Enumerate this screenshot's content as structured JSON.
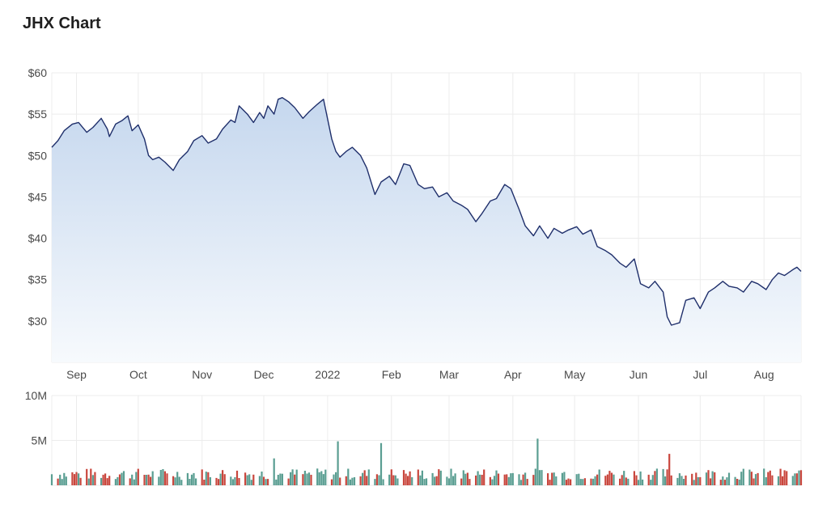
{
  "title": "JHX Chart",
  "chart_data": [
    {
      "type": "area",
      "title": "JHX Chart",
      "ylim": [
        25,
        60
      ],
      "y_ticks": [
        "$60",
        "$55",
        "$50",
        "$45",
        "$40",
        "$35",
        "$30"
      ],
      "y_tick_values": [
        60,
        55,
        50,
        45,
        40,
        35,
        30
      ],
      "x_tick_labels": [
        "Sep",
        "Oct",
        "Nov",
        "Dec",
        "2022",
        "Feb",
        "Mar",
        "Apr",
        "May",
        "Jun",
        "Jul",
        "Aug"
      ],
      "x_tick_dates": [
        "2021-09-01",
        "2021-10-01",
        "2021-11-01",
        "2021-12-01",
        "2022-01-01",
        "2022-02-01",
        "2022-03-01",
        "2022-04-01",
        "2022-05-01",
        "2022-06-01",
        "2022-07-01",
        "2022-08-01"
      ],
      "x_range": [
        "2021-08-20",
        "2022-08-19"
      ],
      "grid": true,
      "colors": {
        "line": "#1f2f6b",
        "fill_top": "#c5d7ee",
        "fill_bottom": "#f7fafd",
        "grid": "#ececec"
      },
      "series": [
        {
          "points": [
            [
              "2021-08-20",
              51.0
            ],
            [
              "2021-08-23",
              51.8
            ],
            [
              "2021-08-26",
              53.0
            ],
            [
              "2021-08-30",
              53.8
            ],
            [
              "2021-09-02",
              54.0
            ],
            [
              "2021-09-06",
              52.8
            ],
            [
              "2021-09-09",
              53.4
            ],
            [
              "2021-09-13",
              54.5
            ],
            [
              "2021-09-16",
              53.2
            ],
            [
              "2021-09-17",
              52.3
            ],
            [
              "2021-09-20",
              53.8
            ],
            [
              "2021-09-23",
              54.2
            ],
            [
              "2021-09-26",
              54.8
            ],
            [
              "2021-09-28",
              53.0
            ],
            [
              "2021-10-01",
              53.7
            ],
            [
              "2021-10-04",
              52.0
            ],
            [
              "2021-10-06",
              50.0
            ],
            [
              "2021-10-08",
              49.5
            ],
            [
              "2021-10-11",
              49.8
            ],
            [
              "2021-10-14",
              49.2
            ],
            [
              "2021-10-18",
              48.2
            ],
            [
              "2021-10-21",
              49.5
            ],
            [
              "2021-10-25",
              50.5
            ],
            [
              "2021-10-28",
              51.8
            ],
            [
              "2021-11-01",
              52.4
            ],
            [
              "2021-11-04",
              51.5
            ],
            [
              "2021-11-08",
              52.0
            ],
            [
              "2021-11-11",
              53.2
            ],
            [
              "2021-11-15",
              54.3
            ],
            [
              "2021-11-17",
              54.0
            ],
            [
              "2021-11-19",
              56.0
            ],
            [
              "2021-11-23",
              55.0
            ],
            [
              "2021-11-26",
              54.0
            ],
            [
              "2021-11-29",
              55.2
            ],
            [
              "2021-12-01",
              54.5
            ],
            [
              "2021-12-03",
              56.0
            ],
            [
              "2021-12-06",
              55.0
            ],
            [
              "2021-12-08",
              56.8
            ],
            [
              "2021-12-10",
              57.0
            ],
            [
              "2021-12-13",
              56.5
            ],
            [
              "2021-12-16",
              55.8
            ],
            [
              "2021-12-20",
              54.5
            ],
            [
              "2021-12-23",
              55.3
            ],
            [
              "2021-12-27",
              56.2
            ],
            [
              "2021-12-30",
              56.8
            ],
            [
              "2022-01-03",
              52.0
            ],
            [
              "2022-01-05",
              50.5
            ],
            [
              "2022-01-07",
              49.8
            ],
            [
              "2022-01-10",
              50.5
            ],
            [
              "2022-01-13",
              51.0
            ],
            [
              "2022-01-17",
              50.0
            ],
            [
              "2022-01-20",
              48.5
            ],
            [
              "2022-01-24",
              45.3
            ],
            [
              "2022-01-27",
              46.8
            ],
            [
              "2022-01-31",
              47.5
            ],
            [
              "2022-02-03",
              46.5
            ],
            [
              "2022-02-07",
              49.0
            ],
            [
              "2022-02-10",
              48.8
            ],
            [
              "2022-02-14",
              46.5
            ],
            [
              "2022-02-17",
              46.0
            ],
            [
              "2022-02-21",
              46.2
            ],
            [
              "2022-02-24",
              45.0
            ],
            [
              "2022-02-28",
              45.5
            ],
            [
              "2022-03-03",
              44.5
            ],
            [
              "2022-03-07",
              44.0
            ],
            [
              "2022-03-10",
              43.5
            ],
            [
              "2022-03-14",
              42.0
            ],
            [
              "2022-03-17",
              43.0
            ],
            [
              "2022-03-21",
              44.5
            ],
            [
              "2022-03-24",
              44.8
            ],
            [
              "2022-03-28",
              46.5
            ],
            [
              "2022-03-31",
              46.0
            ],
            [
              "2022-04-04",
              43.5
            ],
            [
              "2022-04-07",
              41.5
            ],
            [
              "2022-04-11",
              40.3
            ],
            [
              "2022-04-14",
              41.5
            ],
            [
              "2022-04-18",
              40.0
            ],
            [
              "2022-04-21",
              41.2
            ],
            [
              "2022-04-25",
              40.6
            ],
            [
              "2022-04-28",
              41.0
            ],
            [
              "2022-05-02",
              41.4
            ],
            [
              "2022-05-05",
              40.5
            ],
            [
              "2022-05-09",
              41.0
            ],
            [
              "2022-05-12",
              39.0
            ],
            [
              "2022-05-16",
              38.5
            ],
            [
              "2022-05-19",
              38.0
            ],
            [
              "2022-05-23",
              37.0
            ],
            [
              "2022-05-26",
              36.5
            ],
            [
              "2022-05-30",
              37.5
            ],
            [
              "2022-06-02",
              34.5
            ],
            [
              "2022-06-06",
              34.0
            ],
            [
              "2022-06-09",
              34.8
            ],
            [
              "2022-06-13",
              33.5
            ],
            [
              "2022-06-15",
              30.5
            ],
            [
              "2022-06-17",
              29.5
            ],
            [
              "2022-06-21",
              29.8
            ],
            [
              "2022-06-24",
              32.5
            ],
            [
              "2022-06-28",
              32.8
            ],
            [
              "2022-07-01",
              31.5
            ],
            [
              "2022-07-05",
              33.5
            ],
            [
              "2022-07-08",
              34.0
            ],
            [
              "2022-07-12",
              34.8
            ],
            [
              "2022-07-15",
              34.2
            ],
            [
              "2022-07-19",
              34.0
            ],
            [
              "2022-07-22",
              33.5
            ],
            [
              "2022-07-26",
              34.8
            ],
            [
              "2022-07-29",
              34.5
            ],
            [
              "2022-08-02",
              33.8
            ],
            [
              "2022-08-05",
              35.0
            ],
            [
              "2022-08-08",
              35.8
            ],
            [
              "2022-08-11",
              35.5
            ],
            [
              "2022-08-15",
              36.2
            ],
            [
              "2022-08-17",
              36.5
            ],
            [
              "2022-08-19",
              36.0
            ]
          ]
        }
      ]
    },
    {
      "type": "bar",
      "ylim": [
        0,
        10000000
      ],
      "y_ticks": [
        "10M",
        "5M"
      ],
      "y_tick_values": [
        10000000,
        5000000
      ],
      "colors": {
        "up": "#5a9e92",
        "down": "#c9463d",
        "highlight": "#1f2f6b"
      },
      "volume_daily_approx": "bars ~0.5M–2M",
      "peaks": [
        {
          "date": "2021-12-06",
          "value": 3000000,
          "dir": "up"
        },
        {
          "date": "2022-01-06",
          "value": 4900000,
          "dir": "up"
        },
        {
          "date": "2022-01-27",
          "value": 4700000,
          "dir": "up"
        },
        {
          "date": "2022-04-13",
          "value": 5200000,
          "dir": "up"
        },
        {
          "date": "2022-06-16",
          "value": 3500000,
          "dir": "down"
        }
      ]
    }
  ]
}
